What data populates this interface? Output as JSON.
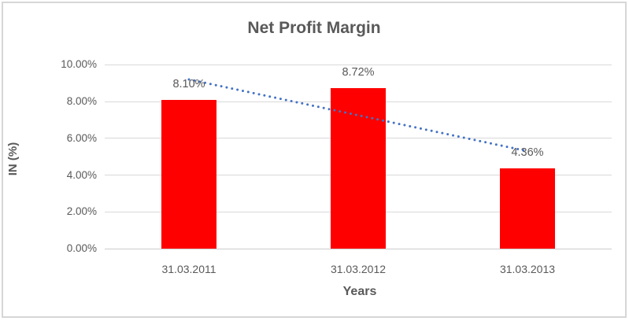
{
  "chart_data": {
    "type": "bar",
    "title": "Net Profit Margin",
    "xlabel": "Years",
    "ylabel": "IN (%)",
    "categories": [
      "31.03.2011",
      "31.03.2012",
      "31.03.2013"
    ],
    "values": [
      8.1,
      8.72,
      4.36
    ],
    "data_labels": [
      "8.10%",
      "8.72%",
      "4.36%"
    ],
    "ylim": [
      0,
      10
    ],
    "ytick_values": [
      0,
      2,
      4,
      6,
      8,
      10
    ],
    "ytick_labels": [
      "0.00%",
      "2.00%",
      "4.00%",
      "6.00%",
      "8.00%",
      "10.00%"
    ],
    "grid": "horizontal",
    "legend": "none",
    "bar_color": "#FF0000",
    "trendline": {
      "type": "linear",
      "style": "dotted",
      "color": "#4472C4",
      "start_pct": 9.2,
      "end_pct": 5.3
    }
  },
  "colors": {
    "text": "#595959",
    "gridline": "#D9D9D9",
    "axis_line": "#CCCCCC",
    "frame_border": "#D6D6D6",
    "background": "#FFFFFF"
  }
}
